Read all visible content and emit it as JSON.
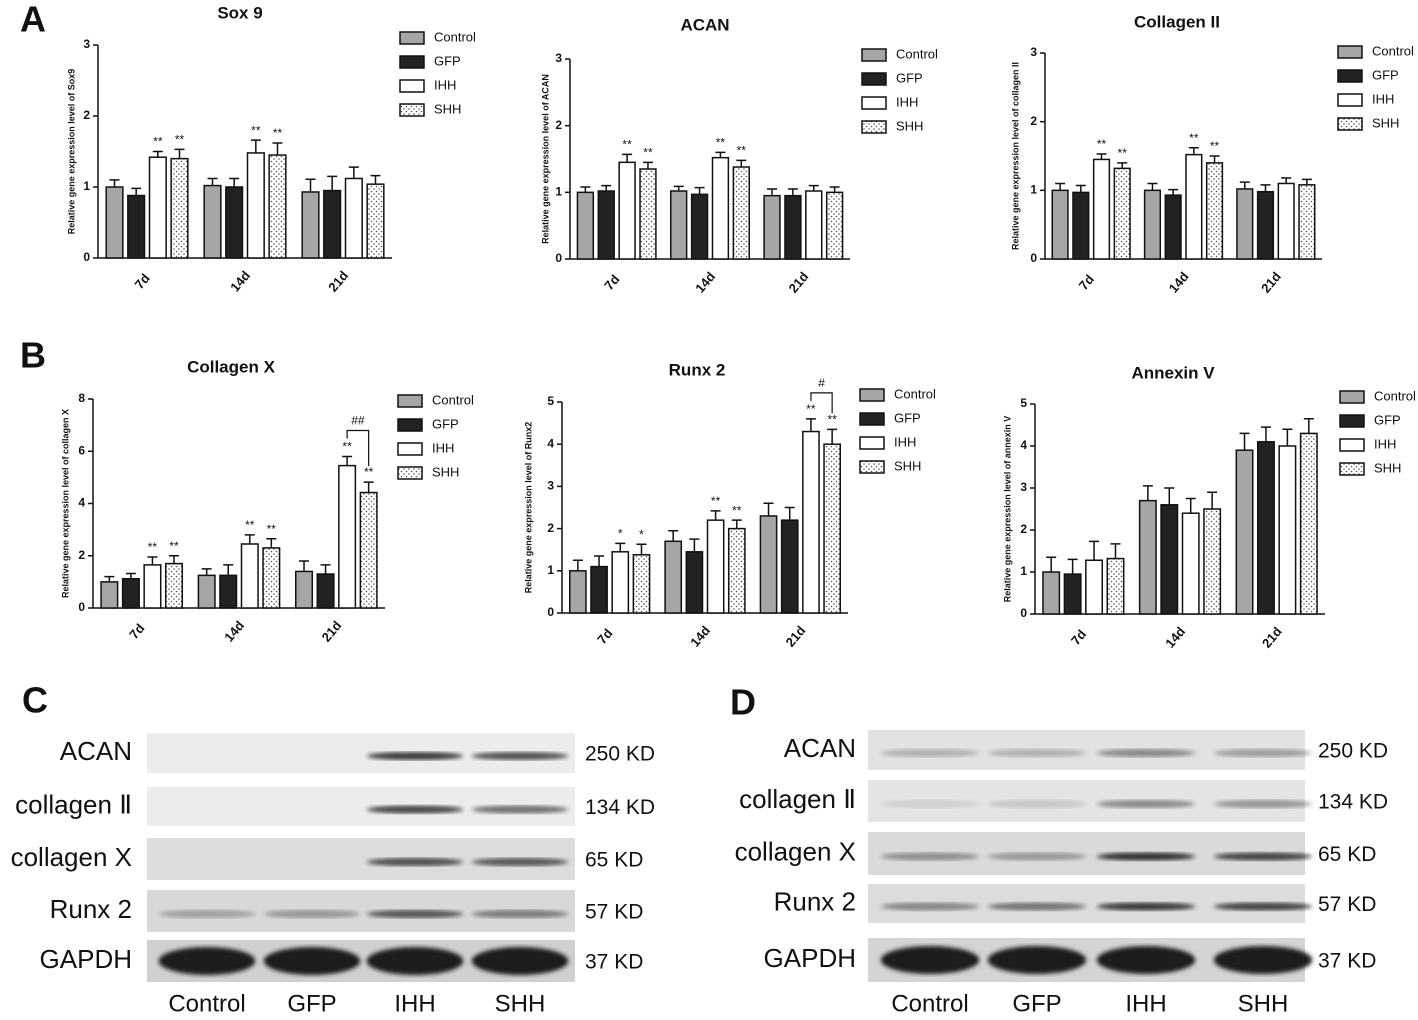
{
  "panel_labels": [
    "A",
    "B",
    "C",
    "D"
  ],
  "chart_data": [
    {
      "type": "bar",
      "title": "Sox 9",
      "y_label": "Relative gene expression level of Sox9",
      "categories": [
        "7d",
        "14d",
        "21d"
      ],
      "ylim": [
        0,
        3
      ],
      "yticks": [
        0,
        1,
        2,
        3
      ],
      "legend": "right",
      "series": [
        {
          "name": "Control",
          "color": "#a6a6a6",
          "values": [
            1.0,
            1.02,
            0.93
          ],
          "errors": [
            0.1,
            0.1,
            0.18
          ]
        },
        {
          "name": "GFP",
          "color": "#222222",
          "values": [
            0.88,
            1.0,
            0.95
          ],
          "errors": [
            0.1,
            0.12,
            0.2
          ]
        },
        {
          "name": "IHH",
          "color": "#ffffff",
          "values": [
            1.42,
            1.48,
            1.12
          ],
          "errors": [
            0.08,
            0.18,
            0.16
          ],
          "significance": [
            "**",
            "**",
            null
          ]
        },
        {
          "name": "SHH",
          "color": "#ffffff",
          "pattern": "dots",
          "values": [
            1.4,
            1.45,
            1.04
          ],
          "errors": [
            0.13,
            0.17,
            0.12
          ],
          "significance": [
            "**",
            "**",
            null
          ]
        }
      ]
    },
    {
      "type": "bar",
      "title": "ACAN",
      "y_label": "Relative gene expression level of ACAN",
      "categories": [
        "7d",
        "14d",
        "21d"
      ],
      "ylim": [
        0,
        3
      ],
      "yticks": [
        0,
        1,
        2,
        3
      ],
      "legend": "right",
      "series": [
        {
          "name": "Control",
          "color": "#a6a6a6",
          "values": [
            1.0,
            1.02,
            0.95
          ],
          "errors": [
            0.08,
            0.07,
            0.1
          ]
        },
        {
          "name": "GFP",
          "color": "#222222",
          "values": [
            1.02,
            0.97,
            0.95
          ],
          "errors": [
            0.08,
            0.1,
            0.1
          ]
        },
        {
          "name": "IHH",
          "color": "#ffffff",
          "values": [
            1.45,
            1.52,
            1.02
          ],
          "errors": [
            0.12,
            0.08,
            0.08
          ],
          "significance": [
            "**",
            "**",
            null
          ]
        },
        {
          "name": "SHH",
          "color": "#ffffff",
          "pattern": "dots",
          "values": [
            1.35,
            1.38,
            1.0
          ],
          "errors": [
            0.1,
            0.1,
            0.08
          ],
          "significance": [
            "**",
            "**",
            null
          ]
        }
      ]
    },
    {
      "type": "bar",
      "title": "Collagen II",
      "y_label": "Relative gene expression level of collagen II",
      "categories": [
        "7d",
        "14d",
        "21d"
      ],
      "ylim": [
        0,
        3
      ],
      "yticks": [
        0,
        1,
        2,
        3
      ],
      "legend": "right",
      "series": [
        {
          "name": "Control",
          "color": "#a6a6a6",
          "values": [
            1.0,
            1.0,
            1.02
          ],
          "errors": [
            0.1,
            0.1,
            0.1
          ]
        },
        {
          "name": "GFP",
          "color": "#222222",
          "values": [
            0.97,
            0.93,
            0.98
          ],
          "errors": [
            0.1,
            0.08,
            0.1
          ]
        },
        {
          "name": "IHH",
          "color": "#ffffff",
          "values": [
            1.45,
            1.52,
            1.1
          ],
          "errors": [
            0.08,
            0.1,
            0.08
          ],
          "significance": [
            "**",
            "**",
            null
          ]
        },
        {
          "name": "SHH",
          "color": "#ffffff",
          "pattern": "dots",
          "values": [
            1.32,
            1.4,
            1.08
          ],
          "errors": [
            0.08,
            0.1,
            0.08
          ],
          "significance": [
            "**",
            "**",
            null
          ]
        }
      ]
    },
    {
      "type": "bar",
      "title": "Collagen X",
      "y_label": "Relative gene expression level of collagen X",
      "categories": [
        "7d",
        "14d",
        "21d"
      ],
      "ylim": [
        0,
        8
      ],
      "yticks": [
        0,
        2,
        4,
        6,
        8
      ],
      "legend": "right",
      "bracket_labels": [
        null,
        null,
        "##"
      ],
      "series": [
        {
          "name": "Control",
          "color": "#a6a6a6",
          "values": [
            1.0,
            1.25,
            1.4
          ],
          "errors": [
            0.2,
            0.25,
            0.4
          ]
        },
        {
          "name": "GFP",
          "color": "#222222",
          "values": [
            1.12,
            1.25,
            1.3
          ],
          "errors": [
            0.2,
            0.4,
            0.35
          ]
        },
        {
          "name": "IHH",
          "color": "#ffffff",
          "values": [
            1.65,
            2.45,
            5.45
          ],
          "errors": [
            0.3,
            0.35,
            0.35
          ],
          "significance": [
            "**",
            "**",
            "**"
          ]
        },
        {
          "name": "SHH",
          "color": "#ffffff",
          "pattern": "dots",
          "values": [
            1.7,
            2.3,
            4.42
          ],
          "errors": [
            0.3,
            0.35,
            0.4
          ],
          "significance": [
            "**",
            "**",
            "**"
          ]
        }
      ]
    },
    {
      "type": "bar",
      "title": "Runx 2",
      "y_label": "Relative gene expression level of Runx2",
      "categories": [
        "7d",
        "14d",
        "21d"
      ],
      "ylim": [
        0,
        5
      ],
      "yticks": [
        0,
        1,
        2,
        3,
        4,
        5
      ],
      "legend": "right",
      "bracket_labels": [
        null,
        null,
        "#"
      ],
      "series": [
        {
          "name": "Control",
          "color": "#a6a6a6",
          "values": [
            1.0,
            1.7,
            2.3
          ],
          "errors": [
            0.25,
            0.25,
            0.3
          ]
        },
        {
          "name": "GFP",
          "color": "#222222",
          "values": [
            1.1,
            1.45,
            2.2
          ],
          "errors": [
            0.25,
            0.3,
            0.3
          ]
        },
        {
          "name": "IHH",
          "color": "#ffffff",
          "values": [
            1.45,
            2.2,
            4.3
          ],
          "errors": [
            0.2,
            0.22,
            0.3
          ],
          "significance": [
            "*",
            "**",
            "**"
          ]
        },
        {
          "name": "SHH",
          "color": "#ffffff",
          "pattern": "dots",
          "values": [
            1.38,
            2.0,
            4.0
          ],
          "errors": [
            0.25,
            0.2,
            0.35
          ],
          "significance": [
            "*",
            "**",
            "**"
          ]
        }
      ]
    },
    {
      "type": "bar",
      "title": "Annexin V",
      "y_label": "Relative gene expression level of annexin V",
      "categories": [
        "7d",
        "14d",
        "21d"
      ],
      "ylim": [
        0,
        5
      ],
      "yticks": [
        0,
        1,
        2,
        3,
        4,
        5
      ],
      "legend": "right",
      "series": [
        {
          "name": "Control",
          "color": "#a6a6a6",
          "values": [
            1.0,
            2.7,
            3.9
          ],
          "errors": [
            0.35,
            0.35,
            0.4
          ]
        },
        {
          "name": "GFP",
          "color": "#222222",
          "values": [
            0.95,
            2.6,
            4.1
          ],
          "errors": [
            0.35,
            0.4,
            0.35
          ]
        },
        {
          "name": "IHH",
          "color": "#ffffff",
          "values": [
            1.28,
            2.4,
            4.0
          ],
          "errors": [
            0.45,
            0.35,
            0.4
          ]
        },
        {
          "name": "SHH",
          "color": "#ffffff",
          "pattern": "dots",
          "values": [
            1.32,
            2.5,
            4.3
          ],
          "errors": [
            0.35,
            0.4,
            0.35
          ]
        }
      ]
    }
  ],
  "blots": [
    {
      "rows": [
        {
          "label": "ACAN",
          "size": "250 KD"
        },
        {
          "label": "collagen Ⅱ",
          "size": "134 KD"
        },
        {
          "label": "collagen X",
          "size": "65 KD"
        },
        {
          "label": "Runx 2",
          "size": "57 KD"
        },
        {
          "label": "GAPDH",
          "size": "37 KD"
        }
      ],
      "lanes": [
        "Control",
        "GFP",
        "IHH",
        "SHH"
      ]
    },
    {
      "rows": [
        {
          "label": "ACAN",
          "size": "250 KD"
        },
        {
          "label": "collagen Ⅱ",
          "size": "134 KD"
        },
        {
          "label": "collagen X",
          "size": "65 KD"
        },
        {
          "label": "Runx 2",
          "size": "57 KD"
        },
        {
          "label": "GAPDH",
          "size": "37 KD"
        }
      ],
      "lanes": [
        "Control",
        "GFP",
        "IHH",
        "SHH"
      ]
    }
  ]
}
